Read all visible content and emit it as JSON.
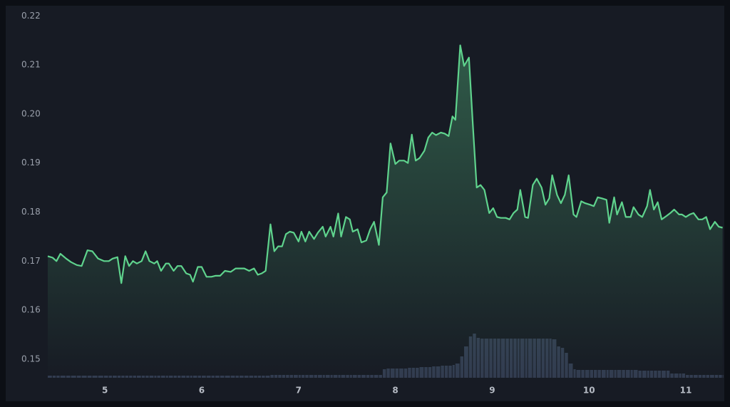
{
  "chart_data": {
    "type": "line",
    "x": [
      4.41,
      4.46,
      4.5,
      4.54,
      4.6,
      4.65,
      4.71,
      4.76,
      4.82,
      4.87,
      4.93,
      4.99,
      5.04,
      5.08,
      5.13,
      5.17,
      5.21,
      5.25,
      5.29,
      5.33,
      5.38,
      5.42,
      5.46,
      5.51,
      5.54,
      5.58,
      5.63,
      5.66,
      5.71,
      5.75,
      5.79,
      5.84,
      5.88,
      5.91,
      5.96,
      6.0,
      6.05,
      6.1,
      6.14,
      6.19,
      6.24,
      6.3,
      6.35,
      6.39,
      6.44,
      6.49,
      6.54,
      6.58,
      6.62,
      6.66,
      6.71,
      6.75,
      6.79,
      6.83,
      6.87,
      6.91,
      6.95,
      7.0,
      7.03,
      7.07,
      7.11,
      7.16,
      7.2,
      7.25,
      7.28,
      7.33,
      7.36,
      7.41,
      7.44,
      7.49,
      7.53,
      7.56,
      7.61,
      7.65,
      7.7,
      7.74,
      7.78,
      7.83,
      7.87,
      7.91,
      7.95,
      8.0,
      8.04,
      8.09,
      8.13,
      8.17,
      8.21,
      8.25,
      8.3,
      8.34,
      8.38,
      8.42,
      8.47,
      8.51,
      8.55,
      8.59,
      8.62,
      8.67,
      8.71,
      8.76,
      8.8,
      8.84,
      8.88,
      8.92,
      8.97,
      9.01,
      9.05,
      9.09,
      9.14,
      9.18,
      9.22,
      9.26,
      9.29,
      9.34,
      9.37,
      9.42,
      9.46,
      9.51,
      9.55,
      9.59,
      9.62,
      9.67,
      9.71,
      9.75,
      9.79,
      9.84,
      9.87,
      9.92,
      9.96,
      10.01,
      10.05,
      10.09,
      10.13,
      10.18,
      10.21,
      10.26,
      10.29,
      10.34,
      10.38,
      10.43,
      10.46,
      10.51,
      10.55,
      10.6,
      10.63,
      10.67,
      10.71,
      10.75,
      10.8,
      10.84,
      10.88,
      10.93,
      10.96,
      11.0,
      11.04,
      11.08,
      11.13,
      11.17,
      11.21,
      11.25,
      11.3,
      11.34,
      11.38
    ],
    "series": [
      {
        "color": "#5fd38d",
        "values": [
          0.171,
          0.1707,
          0.17,
          0.1715,
          0.1705,
          0.1698,
          0.1692,
          0.169,
          0.1722,
          0.172,
          0.1705,
          0.17,
          0.17,
          0.1705,
          0.1708,
          0.1655,
          0.171,
          0.169,
          0.17,
          0.1695,
          0.17,
          0.172,
          0.17,
          0.1695,
          0.17,
          0.168,
          0.1695,
          0.1695,
          0.168,
          0.169,
          0.169,
          0.1675,
          0.1672,
          0.1658,
          0.1688,
          0.1688,
          0.1668,
          0.1668,
          0.167,
          0.167,
          0.168,
          0.1678,
          0.1685,
          0.1685,
          0.1685,
          0.168,
          0.1685,
          0.1672,
          0.1675,
          0.168,
          0.1775,
          0.172,
          0.173,
          0.173,
          0.1755,
          0.176,
          0.1758,
          0.174,
          0.176,
          0.174,
          0.176,
          0.1745,
          0.1758,
          0.177,
          0.175,
          0.177,
          0.175,
          0.1797,
          0.175,
          0.179,
          0.1785,
          0.176,
          0.1765,
          0.1738,
          0.1742,
          0.1765,
          0.178,
          0.1733,
          0.183,
          0.184,
          0.194,
          0.1898,
          0.1905,
          0.1905,
          0.19,
          0.1958,
          0.1905,
          0.191,
          0.1925,
          0.1952,
          0.1962,
          0.1957,
          0.1962,
          0.196,
          0.1955,
          0.1995,
          0.1988,
          0.214,
          0.2098,
          0.2115,
          0.198,
          0.185,
          0.1855,
          0.1845,
          0.1798,
          0.1808,
          0.179,
          0.1788,
          0.1788,
          0.1785,
          0.1798,
          0.1805,
          0.1845,
          0.179,
          0.1788,
          0.1855,
          0.1868,
          0.185,
          0.1815,
          0.1828,
          0.1875,
          0.1835,
          0.1818,
          0.1835,
          0.1875,
          0.1795,
          0.179,
          0.1822,
          0.1818,
          0.1815,
          0.1812,
          0.183,
          0.1828,
          0.1825,
          0.1778,
          0.183,
          0.1795,
          0.182,
          0.179,
          0.179,
          0.181,
          0.1795,
          0.179,
          0.1812,
          0.1845,
          0.1805,
          0.182,
          0.1785,
          0.1792,
          0.1798,
          0.1805,
          0.1795,
          0.1795,
          0.179,
          0.1795,
          0.1798,
          0.1785,
          0.1785,
          0.179,
          0.1765,
          0.178,
          0.177,
          0.1768
        ]
      }
    ],
    "volume": {
      "color": "#323c50",
      "ylim": [
        0,
        100
      ],
      "values": [
        3,
        3,
        3,
        3,
        3,
        3,
        3,
        3,
        3,
        3,
        3,
        3,
        3,
        3,
        3,
        3,
        3,
        3,
        3,
        3,
        3,
        3,
        3,
        3,
        3,
        3,
        3,
        3,
        3,
        3,
        3,
        3,
        3,
        3,
        3,
        3,
        3,
        3,
        3,
        3,
        3,
        3,
        3,
        3,
        3,
        3,
        3,
        3,
        3,
        3,
        4,
        4,
        4,
        4,
        4,
        4,
        4,
        4,
        4,
        4,
        4,
        4,
        4,
        4,
        4,
        4,
        4,
        4,
        4,
        4,
        4,
        4,
        4,
        4,
        4,
        4,
        4,
        4,
        12,
        13,
        13,
        13,
        13,
        13,
        14,
        14,
        14,
        15,
        15,
        15,
        16,
        16,
        17,
        17,
        17,
        18,
        20,
        30,
        44,
        58,
        62,
        56,
        55,
        55,
        55,
        55,
        55,
        55,
        55,
        55,
        55,
        55,
        55,
        55,
        55,
        55,
        55,
        55,
        55,
        55,
        54,
        44,
        42,
        35,
        20,
        12,
        11,
        11,
        11,
        11,
        11,
        11,
        11,
        11,
        11,
        11,
        11,
        11,
        11,
        11,
        11,
        10,
        10,
        10,
        10,
        10,
        10,
        10,
        10,
        6,
        6,
        6,
        6,
        4,
        4,
        4,
        4,
        4,
        4,
        4,
        4,
        4,
        4
      ]
    },
    "xlim": [
      4.41,
      11.39
    ],
    "ylim": [
      0.1462,
      0.2215
    ],
    "xticks": [
      5,
      6,
      7,
      8,
      9,
      10,
      11
    ],
    "yticks": [
      0.15,
      0.16,
      0.17,
      0.18,
      0.19,
      {
        "value": 0.2,
        "label": "0.20"
      },
      0.21,
      0.22
    ]
  }
}
